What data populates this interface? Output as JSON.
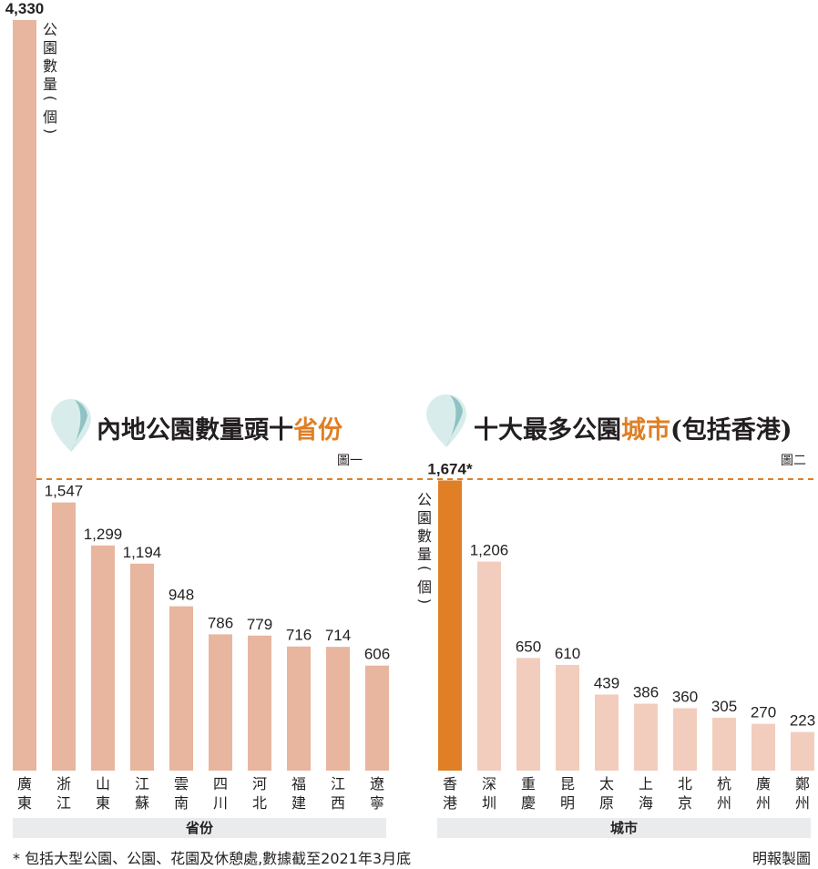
{
  "colors": {
    "bar_left": "#e8b59f",
    "bar_right": "#f2cdbd",
    "bar_highlight": "#e07f25",
    "accent_text": "#e07f25",
    "axis_band": "#eaebed",
    "dashed_line": "#e07f25",
    "pin_light": "#d8ecec",
    "pin_dark": "#8fc2c2"
  },
  "chart_data": [
    {
      "type": "bar",
      "title_main": "內地公園數量頭十",
      "title_accent": "省份",
      "figure_label": "圖一",
      "ylabel": "公園數量(個)",
      "xlabel": "省份",
      "categories": [
        "廣東",
        "浙江",
        "山東",
        "江蘇",
        "雲南",
        "四川",
        "河北",
        "福建",
        "江西",
        "遼寧"
      ],
      "values": [
        4330,
        1547,
        1299,
        1194,
        948,
        786,
        779,
        716,
        714,
        606
      ],
      "value_labels": [
        "4,330",
        "1,547",
        "1,299",
        "1,194",
        "948",
        "786",
        "779",
        "716",
        "714",
        "606"
      ],
      "ylim": [
        0,
        4330
      ]
    },
    {
      "type": "bar",
      "title_main": "十大最多公園",
      "title_accent": "城市",
      "title_suffix": "(包括香港)",
      "figure_label": "圖二",
      "ylabel": "公園數量(個)",
      "xlabel": "城市",
      "categories": [
        "香港",
        "深圳",
        "重慶",
        "昆明",
        "太原",
        "上海",
        "北京",
        "杭州",
        "廣州",
        "鄭州"
      ],
      "values": [
        1674,
        1206,
        650,
        610,
        439,
        386,
        360,
        305,
        270,
        223
      ],
      "value_labels": [
        "1,674*",
        "1,206",
        "650",
        "610",
        "439",
        "386",
        "360",
        "305",
        "270",
        "223"
      ],
      "highlight": "香港"
    }
  ],
  "footnote": "* 包括大型公園、公園、花園及休憩處,數據截至2021年3月底",
  "credit": "明報製圖"
}
